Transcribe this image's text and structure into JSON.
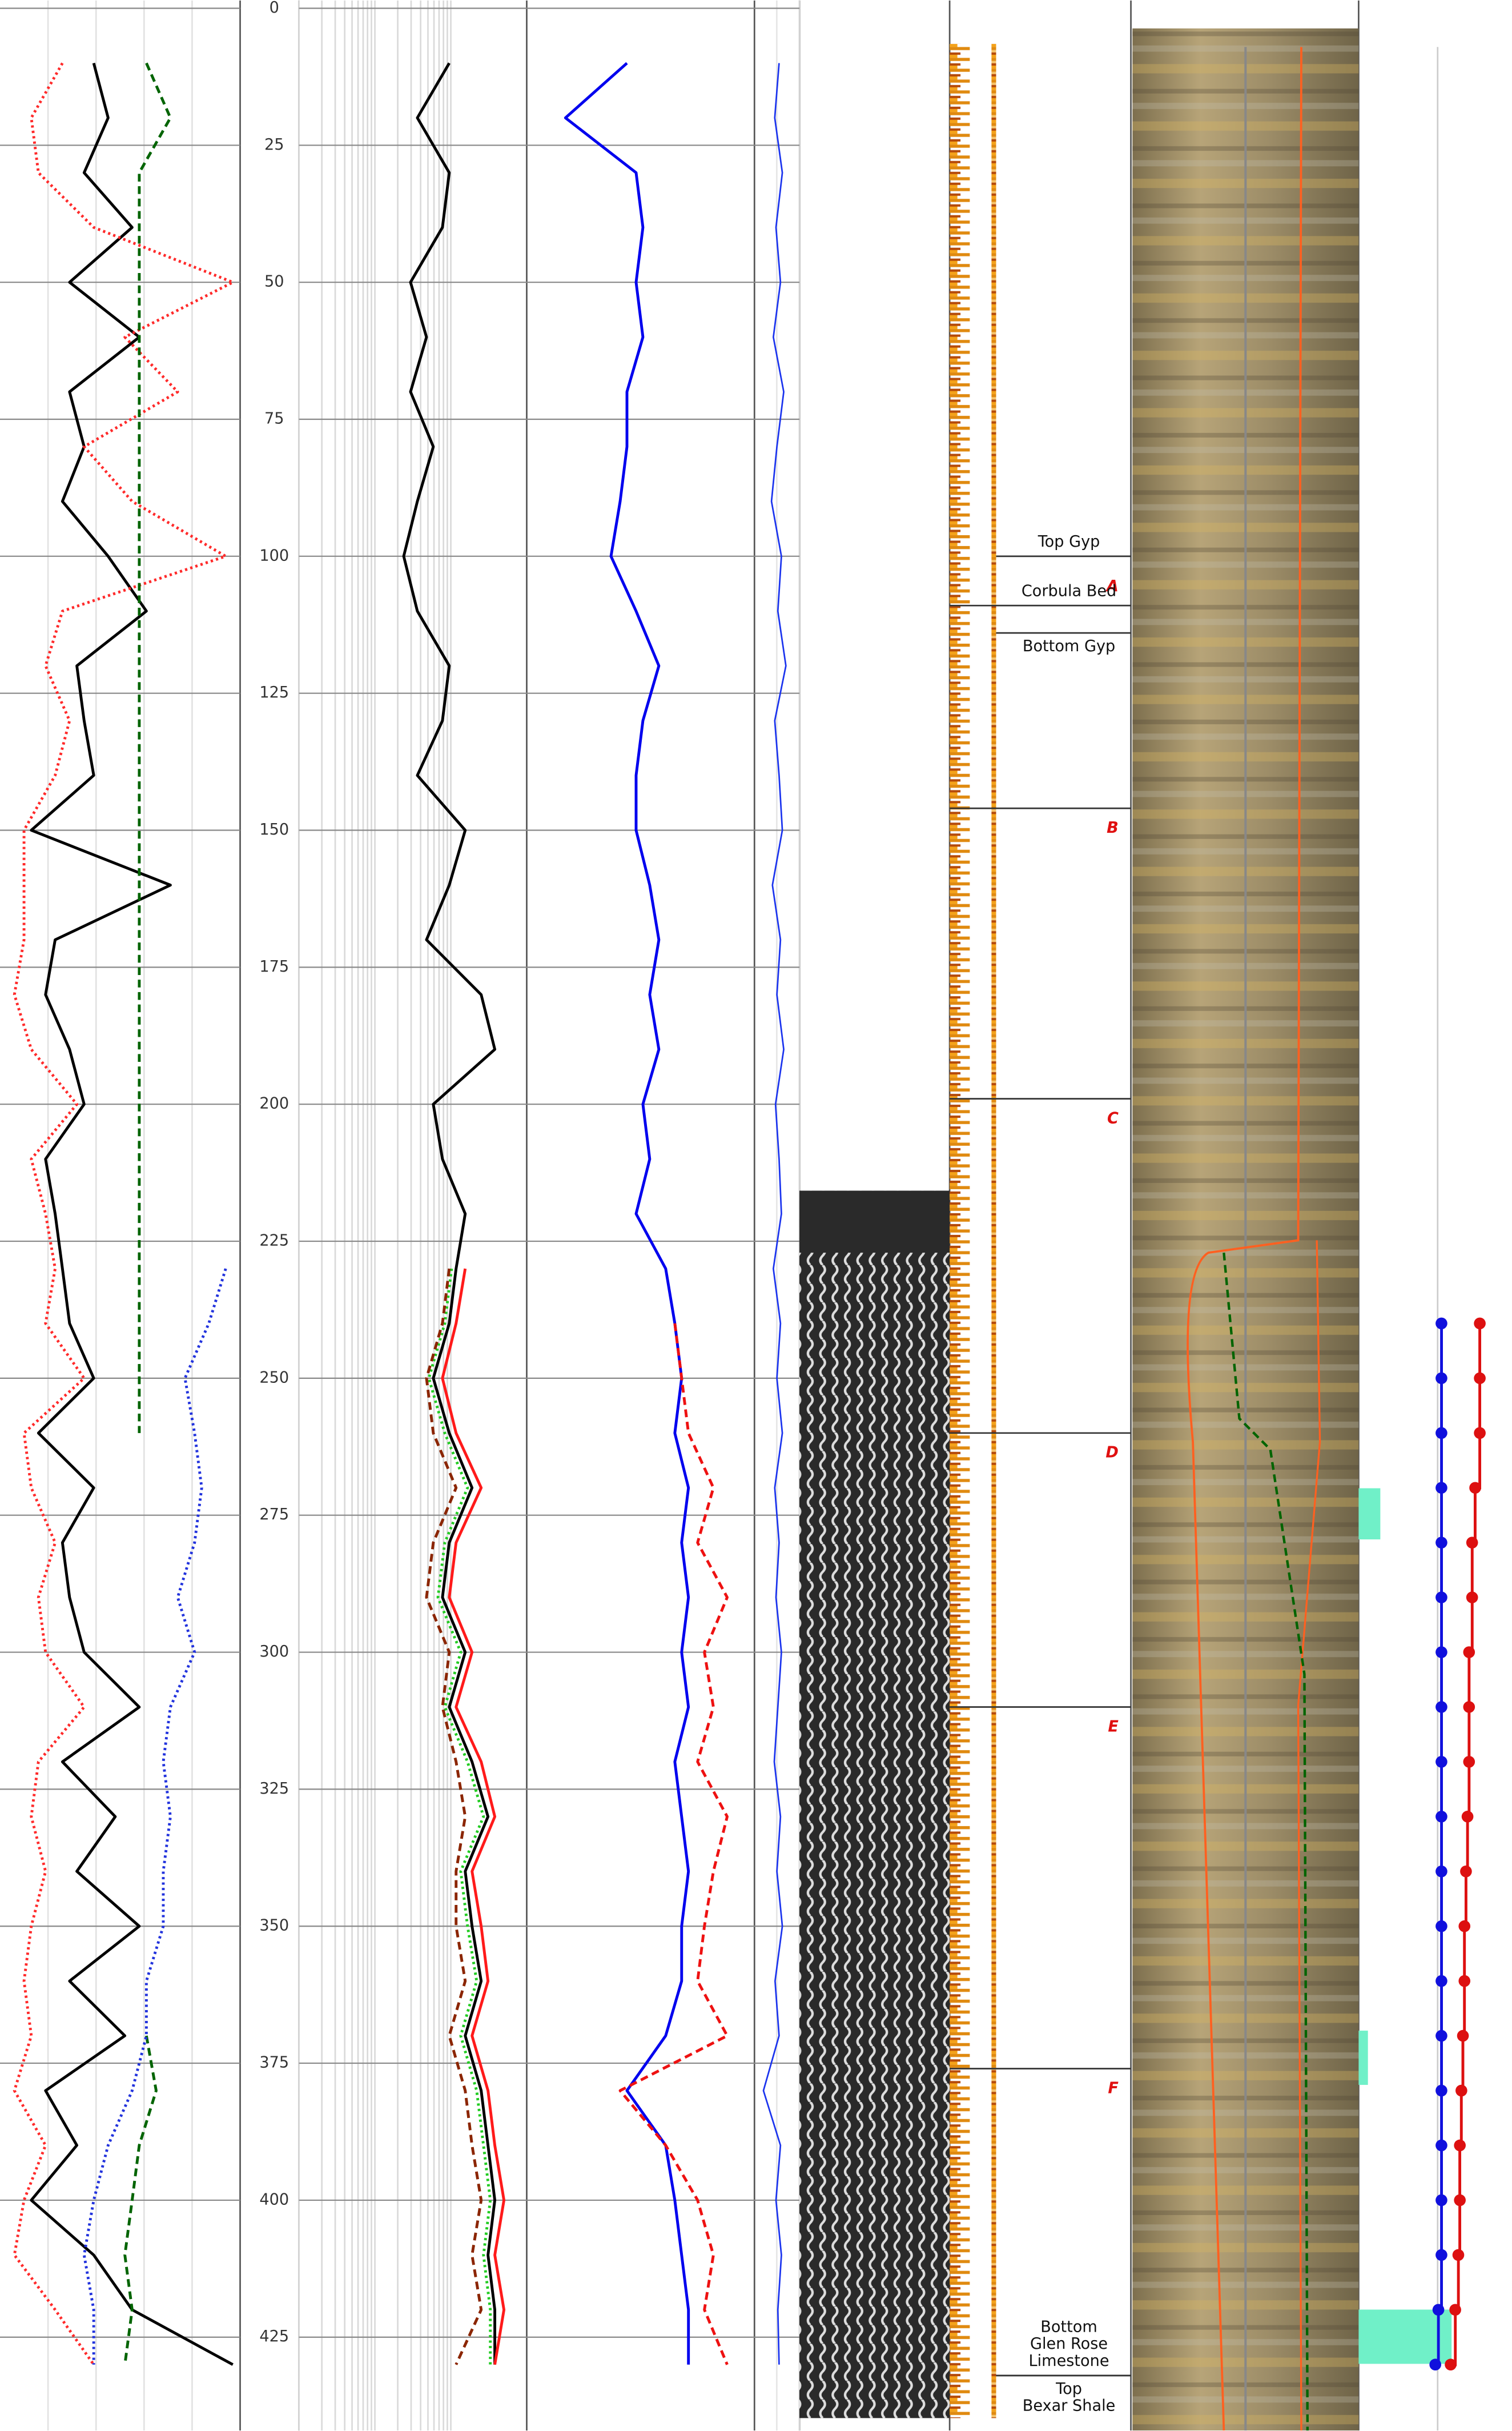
{
  "chart_data": {
    "type": "well-log",
    "ylim": [
      0,
      442
    ],
    "yticks": [
      0,
      25,
      50,
      75,
      100,
      125,
      150,
      175,
      200,
      225,
      250,
      275,
      300,
      325,
      350,
      375,
      400,
      425
    ],
    "grid": true,
    "depth": [
      10,
      20,
      30,
      40,
      50,
      60,
      70,
      80,
      90,
      100,
      110,
      120,
      130,
      140,
      150,
      160,
      170,
      180,
      190,
      200,
      210,
      220,
      230,
      240,
      250,
      260,
      270,
      280,
      290,
      300,
      310,
      320,
      330,
      340,
      350,
      360,
      370,
      380,
      390,
      400,
      410,
      420,
      430
    ],
    "tracks": [
      {
        "xlim": [
          0,
          100
        ],
        "series": [
          {
            "color": "#000000",
            "style": "solid",
            "values": [
              39,
              45,
              35,
              55,
              29,
              58,
              29,
              35,
              26,
              45,
              61,
              32,
              35,
              39,
              13,
              71,
              23,
              19,
              29,
              35,
              19,
              23,
              26,
              29,
              39,
              16,
              39,
              26,
              29,
              35,
              58,
              26,
              48,
              32,
              58,
              29,
              52,
              19,
              32,
              13,
              39,
              55,
              97
            ]
          },
          {
            "color": "#ff2a2a",
            "style": "dotted",
            "values": [
              26,
              13,
              16,
              39,
              97,
              52,
              74,
              35,
              55,
              94,
              26,
              19,
              29,
              23,
              10,
              10,
              10,
              6,
              13,
              32,
              13,
              19,
              23,
              19,
              35,
              10,
              13,
              23,
              16,
              19,
              35,
              16,
              13,
              19,
              13,
              10,
              13,
              6,
              19,
              10,
              6,
              23,
              39
            ]
          },
          {
            "color": "#006400",
            "style": "dashed",
            "values": [
              61,
              71,
              58,
              58,
              58,
              58,
              58,
              58,
              58,
              58,
              58,
              58,
              58,
              58,
              58,
              58,
              58,
              58,
              58,
              58,
              58,
              58,
              58,
              58,
              58,
              58,
              null,
              null,
              null,
              null,
              null,
              null,
              null,
              null,
              null,
              null,
              61,
              65,
              58,
              55,
              52,
              55,
              52
            ]
          },
          {
            "color": "#2233dd",
            "style": "dotted",
            "values": [
              null,
              null,
              null,
              null,
              null,
              null,
              null,
              null,
              null,
              null,
              null,
              null,
              null,
              null,
              null,
              null,
              null,
              null,
              null,
              null,
              null,
              null,
              94,
              87,
              77,
              81,
              84,
              81,
              74,
              81,
              71,
              68,
              71,
              68,
              68,
              61,
              61,
              55,
              45,
              39,
              35,
              39,
              39
            ]
          }
        ]
      },
      {
        "xlim": [
          0,
          100
        ],
        "series": [
          {
            "color": "#000000",
            "style": "solid",
            "values": [
              66,
              52,
              66,
              63,
              49,
              56,
              49,
              59,
              52,
              46,
              52,
              66,
              63,
              52,
              73,
              66,
              56,
              80,
              86,
              59,
              63,
              73,
              69,
              66,
              59,
              66,
              76,
              66,
              63,
              73,
              66,
              76,
              83,
              73,
              76,
              80,
              73,
              80,
              83,
              86,
              83,
              86,
              86
            ]
          },
          {
            "color": "#ff1a1a",
            "style": "solid",
            "values": [
              null,
              null,
              null,
              null,
              null,
              null,
              null,
              null,
              null,
              null,
              null,
              null,
              null,
              null,
              null,
              null,
              null,
              null,
              null,
              null,
              null,
              null,
              73,
              69,
              63,
              69,
              80,
              69,
              66,
              76,
              69,
              80,
              86,
              76,
              80,
              83,
              76,
              83,
              86,
              90,
              86,
              90,
              86
            ]
          },
          {
            "color": "#22cc22",
            "style": "dotted",
            "values": [
              null,
              null,
              null,
              null,
              null,
              null,
              null,
              null,
              null,
              null,
              null,
              null,
              null,
              null,
              null,
              null,
              null,
              null,
              null,
              null,
              null,
              null,
              67,
              64,
              57,
              64,
              74,
              64,
              61,
              71,
              64,
              74,
              81,
              71,
              74,
              78,
              71,
              78,
              81,
              84,
              81,
              84,
              84
            ]
          },
          {
            "color": "#8b2500",
            "style": "dashed",
            "values": [
              null,
              null,
              null,
              null,
              null,
              null,
              null,
              null,
              null,
              null,
              null,
              null,
              null,
              null,
              null,
              null,
              null,
              null,
              null,
              null,
              null,
              null,
              66,
              63,
              56,
              59,
              69,
              59,
              56,
              66,
              63,
              69,
              73,
              69,
              69,
              73,
              66,
              73,
              76,
              80,
              76,
              80,
              69
            ]
          }
        ]
      },
      {
        "xlim": [
          0,
          100
        ],
        "series": [
          {
            "color": "#0000ee",
            "style": "solid",
            "values": [
              44,
              17,
              48,
              51,
              48,
              51,
              44,
              44,
              41,
              37,
              48,
              58,
              51,
              48,
              48,
              54,
              58,
              54,
              58,
              51,
              54,
              48,
              61,
              65,
              68,
              65,
              71,
              68,
              71,
              68,
              71,
              65,
              68,
              71,
              68,
              68,
              61,
              44,
              61,
              65,
              68,
              71,
              71
            ]
          },
          {
            "color": "#ee1111",
            "style": "dashed",
            "values": [
              null,
              null,
              null,
              null,
              null,
              null,
              null,
              null,
              null,
              null,
              null,
              null,
              null,
              null,
              null,
              null,
              null,
              null,
              null,
              null,
              null,
              null,
              null,
              65,
              68,
              71,
              82,
              75,
              88,
              78,
              82,
              75,
              88,
              82,
              78,
              75,
              88,
              41,
              61,
              75,
              82,
              78,
              88
            ]
          }
        ]
      },
      {
        "xlim": [
          0,
          100
        ],
        "series": [
          {
            "color": "#1a33ee",
            "style": "solid",
            "values": [
              55,
              45,
              62,
              48,
              58,
              42,
              65,
              50,
              38,
              60,
              52,
              70,
              45,
              55,
              62,
              40,
              58,
              50,
              65,
              47,
              55,
              60,
              42,
              58,
              50,
              62,
              45,
              55,
              48,
              60,
              52,
              44,
              58,
              50,
              62,
              46,
              55,
              20,
              58,
              48,
              60,
              52,
              55
            ]
          }
        ]
      }
    ],
    "zones": [
      {
        "label": "A",
        "depth": 109
      },
      {
        "label": "B",
        "depth": 146
      },
      {
        "label": "C",
        "depth": 199
      },
      {
        "label": "D",
        "depth": 260
      },
      {
        "label": "E",
        "depth": 310
      },
      {
        "label": "F",
        "depth": 376
      }
    ],
    "formation_tops": [
      {
        "label": [
          "Top Gyp"
        ],
        "depth": 100
      },
      {
        "label": [
          "Corbula Bed"
        ],
        "depth": 109
      },
      {
        "label": [
          "Bottom Gyp"
        ],
        "depth": 114
      },
      {
        "label": [
          "Bottom",
          "Glen Rose",
          "Limestone"
        ],
        "depth": 432
      },
      {
        "label": [
          "Top",
          "Bexar Shale"
        ],
        "depth": 432
      }
    ],
    "permeability": {
      "xlim": [
        0,
        100
      ],
      "depth": [
        240,
        250,
        260,
        270,
        280,
        290,
        300,
        310,
        320,
        330,
        340,
        350,
        360,
        370,
        380,
        390,
        400,
        410,
        420,
        430
      ],
      "series": [
        {
          "color": "#1010dd",
          "values": [
            54,
            54,
            54,
            54,
            54,
            54,
            54,
            54,
            54,
            54,
            54,
            54,
            54,
            54,
            54,
            54,
            54,
            54,
            52,
            50
          ]
        },
        {
          "color": "#dd1010",
          "values": [
            79,
            79,
            79,
            76,
            74,
            74,
            72,
            72,
            72,
            71,
            70,
            69,
            69,
            68,
            67,
            66,
            66,
            65,
            63,
            60
          ]
        }
      ]
    }
  }
}
